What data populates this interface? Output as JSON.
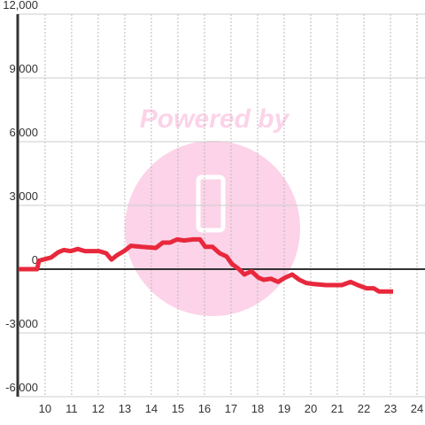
{
  "chart_data": {
    "type": "line",
    "watermark": "Powered by",
    "x": [
      9.0,
      9.7,
      9.77,
      10.23,
      10.5,
      10.7,
      10.97,
      11.23,
      11.5,
      12.03,
      12.3,
      12.5,
      12.7,
      12.97,
      13.23,
      13.63,
      14.17,
      14.43,
      14.7,
      14.97,
      15.23,
      15.57,
      15.83,
      16.03,
      16.3,
      16.57,
      16.83,
      17.03,
      17.3,
      17.5,
      17.77,
      18.03,
      18.23,
      18.5,
      18.77,
      19.03,
      19.3,
      19.57,
      19.83,
      20.1,
      20.57,
      21.17,
      21.5,
      21.77,
      22.1,
      22.37,
      22.57,
      23.1
    ],
    "values": [
      0,
      0,
      400,
      550,
      800,
      900,
      850,
      950,
      850,
      850,
      750,
      450,
      650,
      850,
      1100,
      1050,
      1000,
      1250,
      1250,
      1400,
      1350,
      1400,
      1400,
      1050,
      1050,
      750,
      600,
      250,
      0,
      -250,
      -100,
      -400,
      -500,
      -450,
      -600,
      -400,
      -250,
      -500,
      -650,
      -700,
      -750,
      -750,
      -600,
      -750,
      -900,
      -900,
      -1050,
      -1050
    ],
    "color": "#e8283c",
    "xlim": [
      8.97,
      24.3
    ],
    "ylim": [
      -6000,
      12000
    ],
    "xticks": [
      10,
      11,
      12,
      13,
      14,
      15,
      16,
      17,
      18,
      19,
      20,
      21,
      22,
      23,
      24
    ],
    "yticks": [
      {
        "value": -6000,
        "label": "-6,000"
      },
      {
        "value": -3000,
        "label": "-3,000"
      },
      0,
      {
        "value": 3000,
        "label": "3,000"
      },
      {
        "value": 6000,
        "label": "6,000"
      },
      {
        "value": 9000,
        "label": "9,000"
      },
      {
        "value": 12000,
        "label": "12,000"
      }
    ],
    "grid": true
  }
}
